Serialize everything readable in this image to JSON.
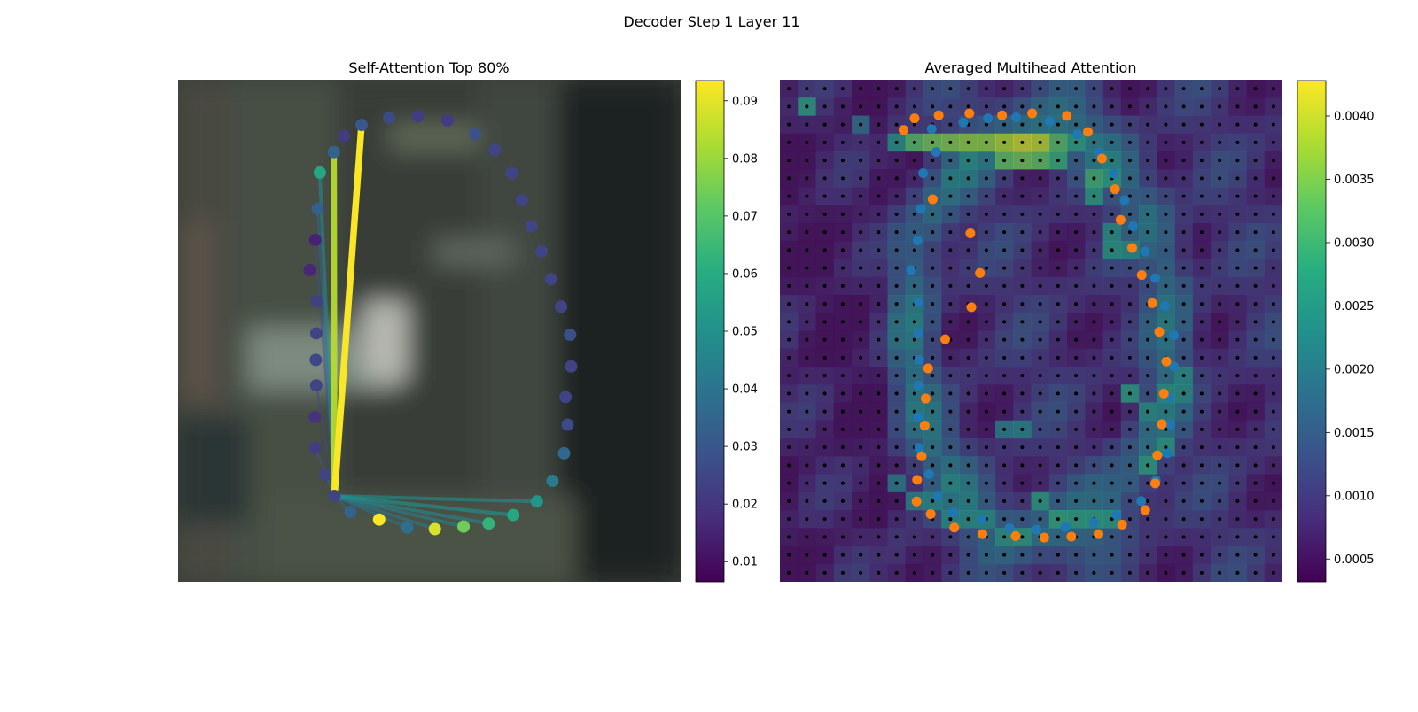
{
  "figure_title": "Decoder Step 1 Layer 11",
  "chart_data": [
    {
      "type": "scatter",
      "title": "Self-Attention Top 80%",
      "xlabel": "",
      "ylabel": "",
      "grid": false,
      "background": "blurred photo background",
      "colormap": "viridis",
      "colorbar": {
        "range": [
          0.0065,
          0.0935
        ],
        "ticks": [
          0.01,
          0.02,
          0.03,
          0.04,
          0.05,
          0.06,
          0.07,
          0.08,
          0.09
        ],
        "tick_labels": [
          "0.01",
          "0.02",
          "0.03",
          "0.04",
          "0.05",
          "0.06",
          "0.07",
          "0.08",
          "0.09"
        ]
      },
      "query_point_index": 26,
      "points": [
        {
          "x": 0.365,
          "y": 0.09,
          "v": 0.03
        },
        {
          "x": 0.42,
          "y": 0.076,
          "v": 0.026
        },
        {
          "x": 0.477,
          "y": 0.073,
          "v": 0.022
        },
        {
          "x": 0.536,
          "y": 0.081,
          "v": 0.022
        },
        {
          "x": 0.591,
          "y": 0.109,
          "v": 0.028
        },
        {
          "x": 0.63,
          "y": 0.14,
          "v": 0.024
        },
        {
          "x": 0.664,
          "y": 0.186,
          "v": 0.024
        },
        {
          "x": 0.684,
          "y": 0.24,
          "v": 0.024
        },
        {
          "x": 0.703,
          "y": 0.292,
          "v": 0.024
        },
        {
          "x": 0.723,
          "y": 0.342,
          "v": 0.024
        },
        {
          "x": 0.742,
          "y": 0.397,
          "v": 0.024
        },
        {
          "x": 0.762,
          "y": 0.452,
          "v": 0.024
        },
        {
          "x": 0.78,
          "y": 0.508,
          "v": 0.027
        },
        {
          "x": 0.782,
          "y": 0.571,
          "v": 0.024
        },
        {
          "x": 0.771,
          "y": 0.632,
          "v": 0.024
        },
        {
          "x": 0.775,
          "y": 0.687,
          "v": 0.026
        },
        {
          "x": 0.768,
          "y": 0.744,
          "v": 0.036
        },
        {
          "x": 0.745,
          "y": 0.799,
          "v": 0.042
        },
        {
          "x": 0.714,
          "y": 0.84,
          "v": 0.052
        },
        {
          "x": 0.667,
          "y": 0.867,
          "v": 0.058
        },
        {
          "x": 0.618,
          "y": 0.884,
          "v": 0.063
        },
        {
          "x": 0.568,
          "y": 0.89,
          "v": 0.074
        },
        {
          "x": 0.511,
          "y": 0.895,
          "v": 0.088
        },
        {
          "x": 0.456,
          "y": 0.892,
          "v": 0.038
        },
        {
          "x": 0.4,
          "y": 0.876,
          "v": 0.093
        },
        {
          "x": 0.343,
          "y": 0.861,
          "v": 0.034
        },
        {
          "x": 0.311,
          "y": 0.829,
          "v": 0.024
        },
        {
          "x": 0.293,
          "y": 0.787,
          "v": 0.024
        },
        {
          "x": 0.273,
          "y": 0.733,
          "v": 0.022
        },
        {
          "x": 0.272,
          "y": 0.672,
          "v": 0.019
        },
        {
          "x": 0.275,
          "y": 0.609,
          "v": 0.024
        },
        {
          "x": 0.274,
          "y": 0.558,
          "v": 0.025
        },
        {
          "x": 0.275,
          "y": 0.505,
          "v": 0.024
        },
        {
          "x": 0.276,
          "y": 0.441,
          "v": 0.023
        },
        {
          "x": 0.262,
          "y": 0.379,
          "v": 0.016
        },
        {
          "x": 0.273,
          "y": 0.319,
          "v": 0.015
        },
        {
          "x": 0.278,
          "y": 0.257,
          "v": 0.033
        },
        {
          "x": 0.282,
          "y": 0.185,
          "v": 0.058
        },
        {
          "x": 0.31,
          "y": 0.144,
          "v": 0.034
        },
        {
          "x": 0.33,
          "y": 0.112,
          "v": 0.022
        }
      ],
      "lines": [
        {
          "to": 0,
          "v": 0.093
        },
        {
          "to": 38,
          "v": 0.084
        },
        {
          "to": 37,
          "v": 0.046
        },
        {
          "to": 36,
          "v": 0.034
        },
        {
          "to": 35,
          "v": 0.028
        },
        {
          "to": 30,
          "v": 0.026
        },
        {
          "to": 28,
          "v": 0.03
        },
        {
          "to": 27,
          "v": 0.032
        },
        {
          "to": 26,
          "v": 0.034
        },
        {
          "to": 25,
          "v": 0.036
        },
        {
          "to": 23,
          "v": 0.04
        },
        {
          "to": 22,
          "v": 0.042
        },
        {
          "to": 21,
          "v": 0.044
        },
        {
          "to": 20,
          "v": 0.046
        },
        {
          "to": 19,
          "v": 0.05
        },
        {
          "to": 18,
          "v": 0.048
        }
      ]
    },
    {
      "type": "heatmap",
      "title": "Averaged Multihead Attention",
      "xlabel": "",
      "ylabel": "",
      "grid": false,
      "colormap": "viridis",
      "colorbar": {
        "range": [
          0.00032,
          0.00428
        ],
        "ticks": [
          0.0005,
          0.001,
          0.0015,
          0.002,
          0.0025,
          0.003,
          0.0035,
          0.004
        ],
        "tick_labels": [
          "0.0005",
          "0.0010",
          "0.0015",
          "0.0020",
          "0.0025",
          "0.0030",
          "0.0035",
          "0.0040"
        ]
      },
      "grid_size": 28,
      "hot_cells": [
        {
          "col": 7,
          "row": 3,
          "v": 0.0032
        },
        {
          "col": 8,
          "row": 3,
          "v": 0.0034
        },
        {
          "col": 9,
          "row": 3,
          "v": 0.0035
        },
        {
          "col": 10,
          "row": 3,
          "v": 0.0036
        },
        {
          "col": 11,
          "row": 3,
          "v": 0.0036
        },
        {
          "col": 12,
          "row": 3,
          "v": 0.0038
        },
        {
          "col": 13,
          "row": 3,
          "v": 0.004
        },
        {
          "col": 14,
          "row": 3,
          "v": 0.0039
        },
        {
          "col": 15,
          "row": 3,
          "v": 0.0032
        },
        {
          "col": 16,
          "row": 3,
          "v": 0.0027
        },
        {
          "col": 12,
          "row": 4,
          "v": 0.0033
        },
        {
          "col": 13,
          "row": 4,
          "v": 0.0034
        },
        {
          "col": 14,
          "row": 4,
          "v": 0.0033
        },
        {
          "col": 15,
          "row": 4,
          "v": 0.0029
        },
        {
          "col": 17,
          "row": 5,
          "v": 0.003
        },
        {
          "col": 18,
          "row": 5,
          "v": 0.0027
        },
        {
          "col": 17,
          "row": 6,
          "v": 0.0026
        },
        {
          "col": 18,
          "row": 8,
          "v": 0.0024
        },
        {
          "col": 19,
          "row": 9,
          "v": 0.0024
        },
        {
          "col": 18,
          "row": 9,
          "v": 0.0025
        },
        {
          "col": 1,
          "row": 1,
          "v": 0.0026
        },
        {
          "col": 4,
          "row": 2,
          "v": 0.0018
        },
        {
          "col": 6,
          "row": 3,
          "v": 0.0024
        },
        {
          "col": 19,
          "row": 17,
          "v": 0.0026
        },
        {
          "col": 20,
          "row": 18,
          "v": 0.0024
        },
        {
          "col": 21,
          "row": 17,
          "v": 0.0025
        },
        {
          "col": 22,
          "row": 16,
          "v": 0.0024
        },
        {
          "col": 22,
          "row": 17,
          "v": 0.0024
        },
        {
          "col": 21,
          "row": 20,
          "v": 0.0026
        },
        {
          "col": 20,
          "row": 21,
          "v": 0.0027
        },
        {
          "col": 14,
          "row": 23,
          "v": 0.0026
        },
        {
          "col": 15,
          "row": 24,
          "v": 0.0028
        },
        {
          "col": 16,
          "row": 24,
          "v": 0.0027
        },
        {
          "col": 17,
          "row": 24,
          "v": 0.0027
        },
        {
          "col": 18,
          "row": 24,
          "v": 0.0026
        },
        {
          "col": 13,
          "row": 25,
          "v": 0.0026
        },
        {
          "col": 12,
          "row": 25,
          "v": 0.0025
        },
        {
          "col": 11,
          "row": 24,
          "v": 0.0024
        },
        {
          "col": 10,
          "row": 24,
          "v": 0.0024
        },
        {
          "col": 9,
          "row": 24,
          "v": 0.0024
        },
        {
          "col": 8,
          "row": 23,
          "v": 0.0023
        },
        {
          "col": 7,
          "row": 23,
          "v": 0.0022
        },
        {
          "col": 6,
          "row": 22,
          "v": 0.002
        },
        {
          "col": 12,
          "row": 19,
          "v": 0.0021
        },
        {
          "col": 13,
          "row": 19,
          "v": 0.0022
        }
      ],
      "series": [
        {
          "color": "#1f77b4",
          "points": [
            [
              0.302,
              0.098
            ],
            [
              0.365,
              0.085
            ],
            [
              0.414,
              0.077
            ],
            [
              0.47,
              0.075
            ],
            [
              0.537,
              0.083
            ],
            [
              0.592,
              0.109
            ],
            [
              0.634,
              0.145
            ],
            [
              0.664,
              0.187
            ],
            [
              0.686,
              0.24
            ],
            [
              0.703,
              0.292
            ],
            [
              0.727,
              0.342
            ],
            [
              0.747,
              0.395
            ],
            [
              0.766,
              0.451
            ],
            [
              0.784,
              0.509
            ],
            [
              0.784,
              0.571
            ],
            [
              0.775,
              0.633
            ],
            [
              0.777,
              0.687
            ],
            [
              0.771,
              0.744
            ],
            [
              0.748,
              0.798
            ],
            [
              0.719,
              0.839
            ],
            [
              0.67,
              0.867
            ],
            [
              0.625,
              0.882
            ],
            [
              0.568,
              0.891
            ],
            [
              0.511,
              0.896
            ],
            [
              0.457,
              0.893
            ],
            [
              0.402,
              0.876
            ],
            [
              0.345,
              0.862
            ],
            [
              0.314,
              0.83
            ],
            [
              0.297,
              0.786
            ],
            [
              0.277,
              0.733
            ],
            [
              0.275,
              0.672
            ],
            [
              0.276,
              0.609
            ],
            [
              0.277,
              0.558
            ],
            [
              0.276,
              0.505
            ],
            [
              0.276,
              0.443
            ],
            [
              0.261,
              0.379
            ],
            [
              0.274,
              0.32
            ],
            [
              0.281,
              0.257
            ],
            [
              0.285,
              0.186
            ],
            [
              0.311,
              0.144
            ]
          ]
        },
        {
          "color": "#ff7f0e",
          "points": [
            [
              0.246,
              0.1
            ],
            [
              0.268,
              0.077
            ],
            [
              0.316,
              0.071
            ],
            [
              0.377,
              0.067
            ],
            [
              0.442,
              0.071
            ],
            [
              0.502,
              0.067
            ],
            [
              0.571,
              0.072
            ],
            [
              0.613,
              0.104
            ],
            [
              0.641,
              0.157
            ],
            [
              0.667,
              0.218
            ],
            [
              0.678,
              0.279
            ],
            [
              0.701,
              0.335
            ],
            [
              0.72,
              0.389
            ],
            [
              0.741,
              0.445
            ],
            [
              0.755,
              0.502
            ],
            [
              0.769,
              0.561
            ],
            [
              0.764,
              0.625
            ],
            [
              0.76,
              0.686
            ],
            [
              0.751,
              0.748
            ],
            [
              0.747,
              0.804
            ],
            [
              0.727,
              0.857
            ],
            [
              0.681,
              0.886
            ],
            [
              0.634,
              0.905
            ],
            [
              0.58,
              0.91
            ],
            [
              0.526,
              0.912
            ],
            [
              0.469,
              0.909
            ],
            [
              0.403,
              0.905
            ],
            [
              0.347,
              0.892
            ],
            [
              0.3,
              0.865
            ],
            [
              0.272,
              0.84
            ],
            [
              0.273,
              0.797
            ],
            [
              0.282,
              0.75
            ],
            [
              0.288,
              0.689
            ],
            [
              0.29,
              0.635
            ],
            [
              0.295,
              0.575
            ],
            [
              0.329,
              0.517
            ],
            [
              0.381,
              0.453
            ],
            [
              0.398,
              0.385
            ],
            [
              0.379,
              0.306
            ],
            [
              0.304,
              0.238
            ]
          ]
        }
      ]
    }
  ]
}
